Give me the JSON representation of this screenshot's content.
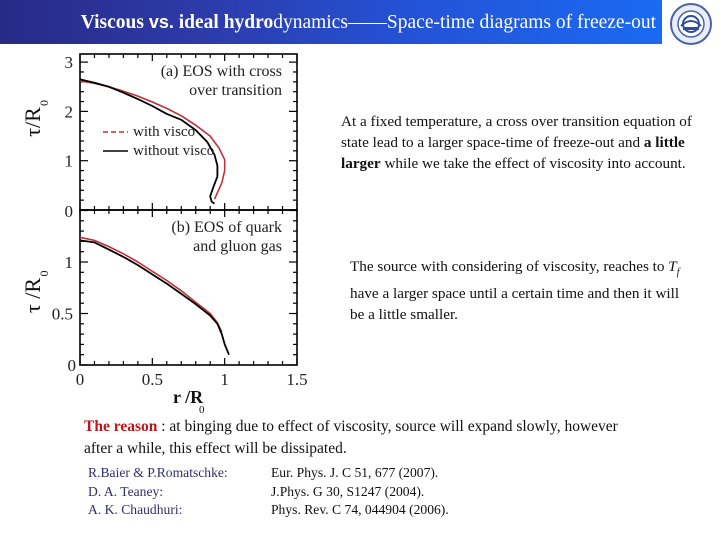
{
  "header": {
    "title_bold_1": "Viscous ",
    "title_vs": "vs.",
    "title_bold_2": " ideal hydro",
    "title_rest": "dynamics——Space-time diagrams of freeze-out",
    "logo": "university-seal-logo",
    "gradient_colors": [
      "#272a86",
      "#1a6af2"
    ]
  },
  "chart_data": [
    {
      "type": "line",
      "panel": "a",
      "title": "(a) EOS with cross over transition",
      "annotation_lines": [
        "(a) EOS with cross",
        "over transition"
      ],
      "xlabel": "",
      "ylabel": "τ/R0",
      "xlim": [
        0,
        1.5
      ],
      "ylim": [
        0,
        3.1
      ],
      "yticks": [
        "0",
        "1",
        "2",
        "3"
      ],
      "grid": false,
      "legend": [
        {
          "label": "with visco",
          "style": "dashed",
          "color": "#c0303a"
        },
        {
          "label": "without visco",
          "style": "solid",
          "color": "#000000"
        }
      ],
      "legend_position": "left-middle",
      "series": [
        {
          "name": "with visco",
          "color": "#c0303a",
          "points": [
            [
              0,
              2.62
            ],
            [
              0.1,
              2.57
            ],
            [
              0.2,
              2.5
            ],
            [
              0.3,
              2.41
            ],
            [
              0.4,
              2.31
            ],
            [
              0.5,
              2.19
            ],
            [
              0.6,
              2.06
            ],
            [
              0.7,
              1.91
            ],
            [
              0.8,
              1.72
            ],
            [
              0.9,
              1.5
            ],
            [
              0.96,
              1.26
            ],
            [
              1.0,
              1.02
            ],
            [
              1.0,
              0.8
            ],
            [
              0.98,
              0.55
            ],
            [
              0.95,
              0.35
            ],
            [
              0.93,
              0.22
            ]
          ]
        },
        {
          "name": "without visco",
          "color": "#000000",
          "points": [
            [
              0,
              2.65
            ],
            [
              0.1,
              2.58
            ],
            [
              0.2,
              2.5
            ],
            [
              0.3,
              2.38
            ],
            [
              0.4,
              2.25
            ],
            [
              0.5,
              2.11
            ],
            [
              0.6,
              1.95
            ],
            [
              0.7,
              1.83
            ],
            [
              0.8,
              1.62
            ],
            [
              0.88,
              1.38
            ],
            [
              0.93,
              1.12
            ],
            [
              0.95,
              0.9
            ],
            [
              0.95,
              0.68
            ],
            [
              0.92,
              0.45
            ],
            [
              0.9,
              0.28
            ],
            [
              0.91,
              0.17
            ],
            [
              0.93,
              0.13
            ]
          ]
        }
      ]
    },
    {
      "type": "line",
      "panel": "b",
      "title": "(b) EOS of quark and gluon gas",
      "annotation_lines": [
        "(b) EOS of quark",
        "and gluon gas"
      ],
      "xlabel": "r /R0",
      "ylabel": "τ /R0",
      "xlim": [
        0,
        1.5
      ],
      "ylim": [
        0,
        1.3
      ],
      "xticks": [
        "0",
        "0.5",
        "1",
        "1.5"
      ],
      "yticks": [
        "0",
        "0.5",
        "1"
      ],
      "grid": false,
      "series": [
        {
          "name": "with visco",
          "color": "#c0303a",
          "points": [
            [
              0,
              1.24
            ],
            [
              0.1,
              1.21
            ],
            [
              0.2,
              1.15
            ],
            [
              0.3,
              1.08
            ],
            [
              0.4,
              1.0
            ],
            [
              0.5,
              0.91
            ],
            [
              0.6,
              0.82
            ],
            [
              0.7,
              0.72
            ],
            [
              0.8,
              0.61
            ],
            [
              0.9,
              0.5
            ],
            [
              0.95,
              0.41
            ],
            [
              0.98,
              0.32
            ]
          ]
        },
        {
          "name": "without visco",
          "color": "#000000",
          "points": [
            [
              0,
              1.21
            ],
            [
              0.1,
              1.19
            ],
            [
              0.2,
              1.12
            ],
            [
              0.3,
              1.05
            ],
            [
              0.4,
              0.97
            ],
            [
              0.5,
              0.88
            ],
            [
              0.6,
              0.79
            ],
            [
              0.7,
              0.69
            ],
            [
              0.8,
              0.59
            ],
            [
              0.9,
              0.48
            ],
            [
              0.95,
              0.4
            ],
            [
              0.98,
              0.3
            ],
            [
              1.0,
              0.2
            ],
            [
              1.03,
              0.1
            ]
          ]
        }
      ]
    }
  ],
  "body": {
    "para1_a": "At a fixed temperature, a cross over transition equation of state lead to a larger space-time of freeze-out and ",
    "para1_bold": "a little larger",
    "para1_b": " while we take the effect of viscosity into account.",
    "para2_a": "The source with considering of viscosity, reaches to ",
    "para2_T": "T",
    "para2_sub": "f",
    "para2_b": " have a larger space until a certain time and then it will be a little smaller.",
    "reason_label": "The reason",
    "reason_text": " : at binging due to effect of viscosity, source will expand slowly, however after a while, this effect will be dissipated."
  },
  "references": [
    {
      "author": "R.Baier & P.Romatschke:",
      "citation": "Eur. Phys. J. C 51, 677 (2007)."
    },
    {
      "author": "D. A. Teaney:",
      "citation": "J.Phys. G 30, S1247 (2004)."
    },
    {
      "author": "A. K. Chaudhuri:",
      "citation": "Phys. Rev. C 74, 044904 (2006)."
    }
  ]
}
